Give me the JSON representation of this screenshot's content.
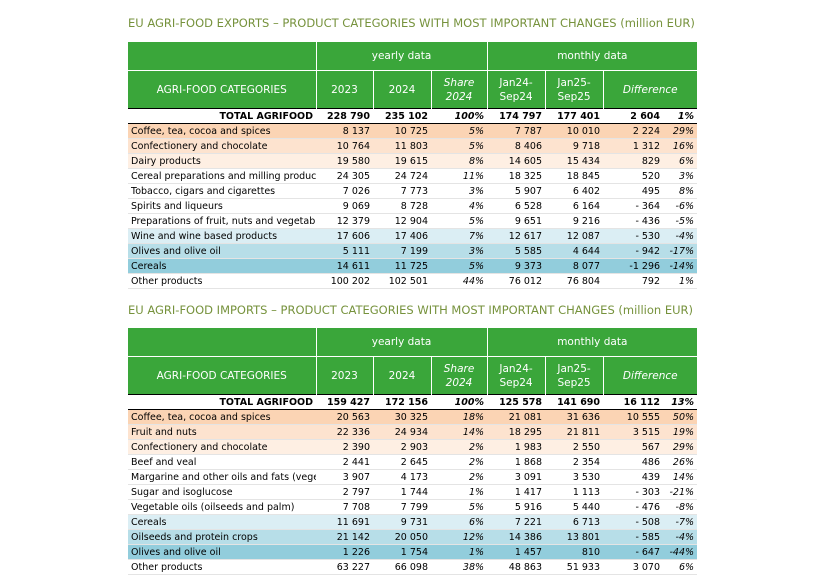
{
  "tables": [
    {
      "title": "EU AGRI-FOOD EXPORTS – PRODUCT CATEGORIES WITH MOST IMPORTANT CHANGES (million EUR)",
      "header": {
        "groups": [
          "yearly data",
          "monthly data"
        ],
        "columns": [
          "AGRI-FOOD CATEGORIES",
          "2023",
          "2024",
          "Share 2024",
          "Jan24-Sep24",
          "Jan25-Sep25",
          "Difference"
        ]
      },
      "rows": [
        {
          "bold": true,
          "cells": [
            "TOTAL AGRIFOOD",
            "228 790",
            "235 102",
            "100%",
            "174 797",
            "177 401",
            "2 604",
            "1%"
          ]
        },
        {
          "color": "#fbd4b4",
          "cells": [
            "Coffee, tea, cocoa and spices",
            "8 137",
            "10 725",
            "5%",
            "7 787",
            "10 010",
            "2 224",
            "29%"
          ]
        },
        {
          "color": "#fde3cf",
          "cells": [
            "Confectionery and chocolate",
            "10 764",
            "11 803",
            "5%",
            "8 406",
            "9 718",
            "1 312",
            "16%"
          ]
        },
        {
          "color": "#feefe3",
          "cells": [
            "Dairy products",
            "19 580",
            "19 615",
            "8%",
            "14 605",
            "15 434",
            "829",
            "6%"
          ]
        },
        {
          "cells": [
            "Cereal preparations and milling products",
            "24 305",
            "24 724",
            "11%",
            "18 325",
            "18 845",
            "520",
            "3%"
          ]
        },
        {
          "cells": [
            "Tobacco, cigars and cigarettes",
            "7 026",
            "7 773",
            "3%",
            "5 907",
            "6 402",
            "495",
            "8%"
          ]
        },
        {
          "cells": [
            "Spirits and liqueurs",
            "9 069",
            "8 728",
            "4%",
            "6 528",
            "6 164",
            "- 364",
            "-6%"
          ]
        },
        {
          "cells": [
            "Preparations of fruit, nuts and vegetables",
            "12 379",
            "12 904",
            "5%",
            "9 651",
            "9 216",
            "- 436",
            "-5%"
          ]
        },
        {
          "color": "#dbeef4",
          "cells": [
            "Wine and wine based products",
            "17 606",
            "17 406",
            "7%",
            "12 617",
            "12 087",
            "- 530",
            "-4%"
          ]
        },
        {
          "color": "#b7dee8",
          "cells": [
            "Olives and olive oil",
            "5 111",
            "7 199",
            "3%",
            "5 585",
            "4 644",
            "- 942",
            "-17%"
          ]
        },
        {
          "color": "#92cddc",
          "cells": [
            "Cereals",
            "14 611",
            "11 725",
            "5%",
            "9 373",
            "8 077",
            "-1 296",
            "-14%"
          ]
        },
        {
          "cells": [
            "Other products",
            "100 202",
            "102 501",
            "44%",
            "76 012",
            "76 804",
            "792",
            "1%"
          ]
        }
      ]
    },
    {
      "title": "EU AGRI-FOOD IMPORTS – PRODUCT CATEGORIES WITH MOST IMPORTANT CHANGES (million EUR)",
      "header": {
        "groups": [
          "yearly data",
          "monthly data"
        ],
        "columns": [
          "AGRI-FOOD CATEGORIES",
          "2023",
          "2024",
          "Share 2024",
          "Jan24-Sep24",
          "Jan25-Sep25",
          "Difference"
        ]
      },
      "rows": [
        {
          "bold": true,
          "cells": [
            "TOTAL AGRIFOOD",
            "159 427",
            "172 156",
            "100%",
            "125 578",
            "141 690",
            "16 112",
            "13%"
          ]
        },
        {
          "color": "#fbd4b4",
          "cells": [
            "Coffee, tea, cocoa and spices",
            "20 563",
            "30 325",
            "18%",
            "21 081",
            "31 636",
            "10 555",
            "50%"
          ]
        },
        {
          "color": "#fde3cf",
          "cells": [
            "Fruit and nuts",
            "22 336",
            "24 934",
            "14%",
            "18 295",
            "21 811",
            "3 515",
            "19%"
          ]
        },
        {
          "color": "#feefe3",
          "cells": [
            "Confectionery and chocolate",
            "2 390",
            "2 903",
            "2%",
            "1 983",
            "2 550",
            "567",
            "29%"
          ]
        },
        {
          "cells": [
            "Beef and veal",
            "2 441",
            "2 645",
            "2%",
            "1 868",
            "2 354",
            "486",
            "26%"
          ]
        },
        {
          "cells": [
            "Margarine and other oils and fats (vegetable",
            "3 907",
            "4 173",
            "2%",
            "3 091",
            "3 530",
            "439",
            "14%"
          ]
        },
        {
          "cells": [
            "Sugar and isoglucose",
            "2 797",
            "1 744",
            "1%",
            "1 417",
            "1 113",
            "- 303",
            "-21%"
          ]
        },
        {
          "cells": [
            "Vegetable oils (oilseeds and palm)",
            "7 708",
            "7 799",
            "5%",
            "5 916",
            "5 440",
            "- 476",
            "-8%"
          ]
        },
        {
          "color": "#dbeef4",
          "cells": [
            "Cereals",
            "11 691",
            "9 731",
            "6%",
            "7 221",
            "6 713",
            "- 508",
            "-7%"
          ]
        },
        {
          "color": "#b7dee8",
          "cells": [
            "Oilseeds and protein crops",
            "21 142",
            "20 050",
            "12%",
            "14 386",
            "13 801",
            "- 585",
            "-4%"
          ]
        },
        {
          "color": "#92cddc",
          "cells": [
            "Olives and olive oil",
            "1 226",
            "1 754",
            "1%",
            "1 457",
            "810",
            "- 647",
            "-44%"
          ]
        },
        {
          "cells": [
            "Other products",
            "63 227",
            "66 098",
            "38%",
            "48 863",
            "51 933",
            "3 070",
            "6%"
          ]
        }
      ]
    }
  ]
}
